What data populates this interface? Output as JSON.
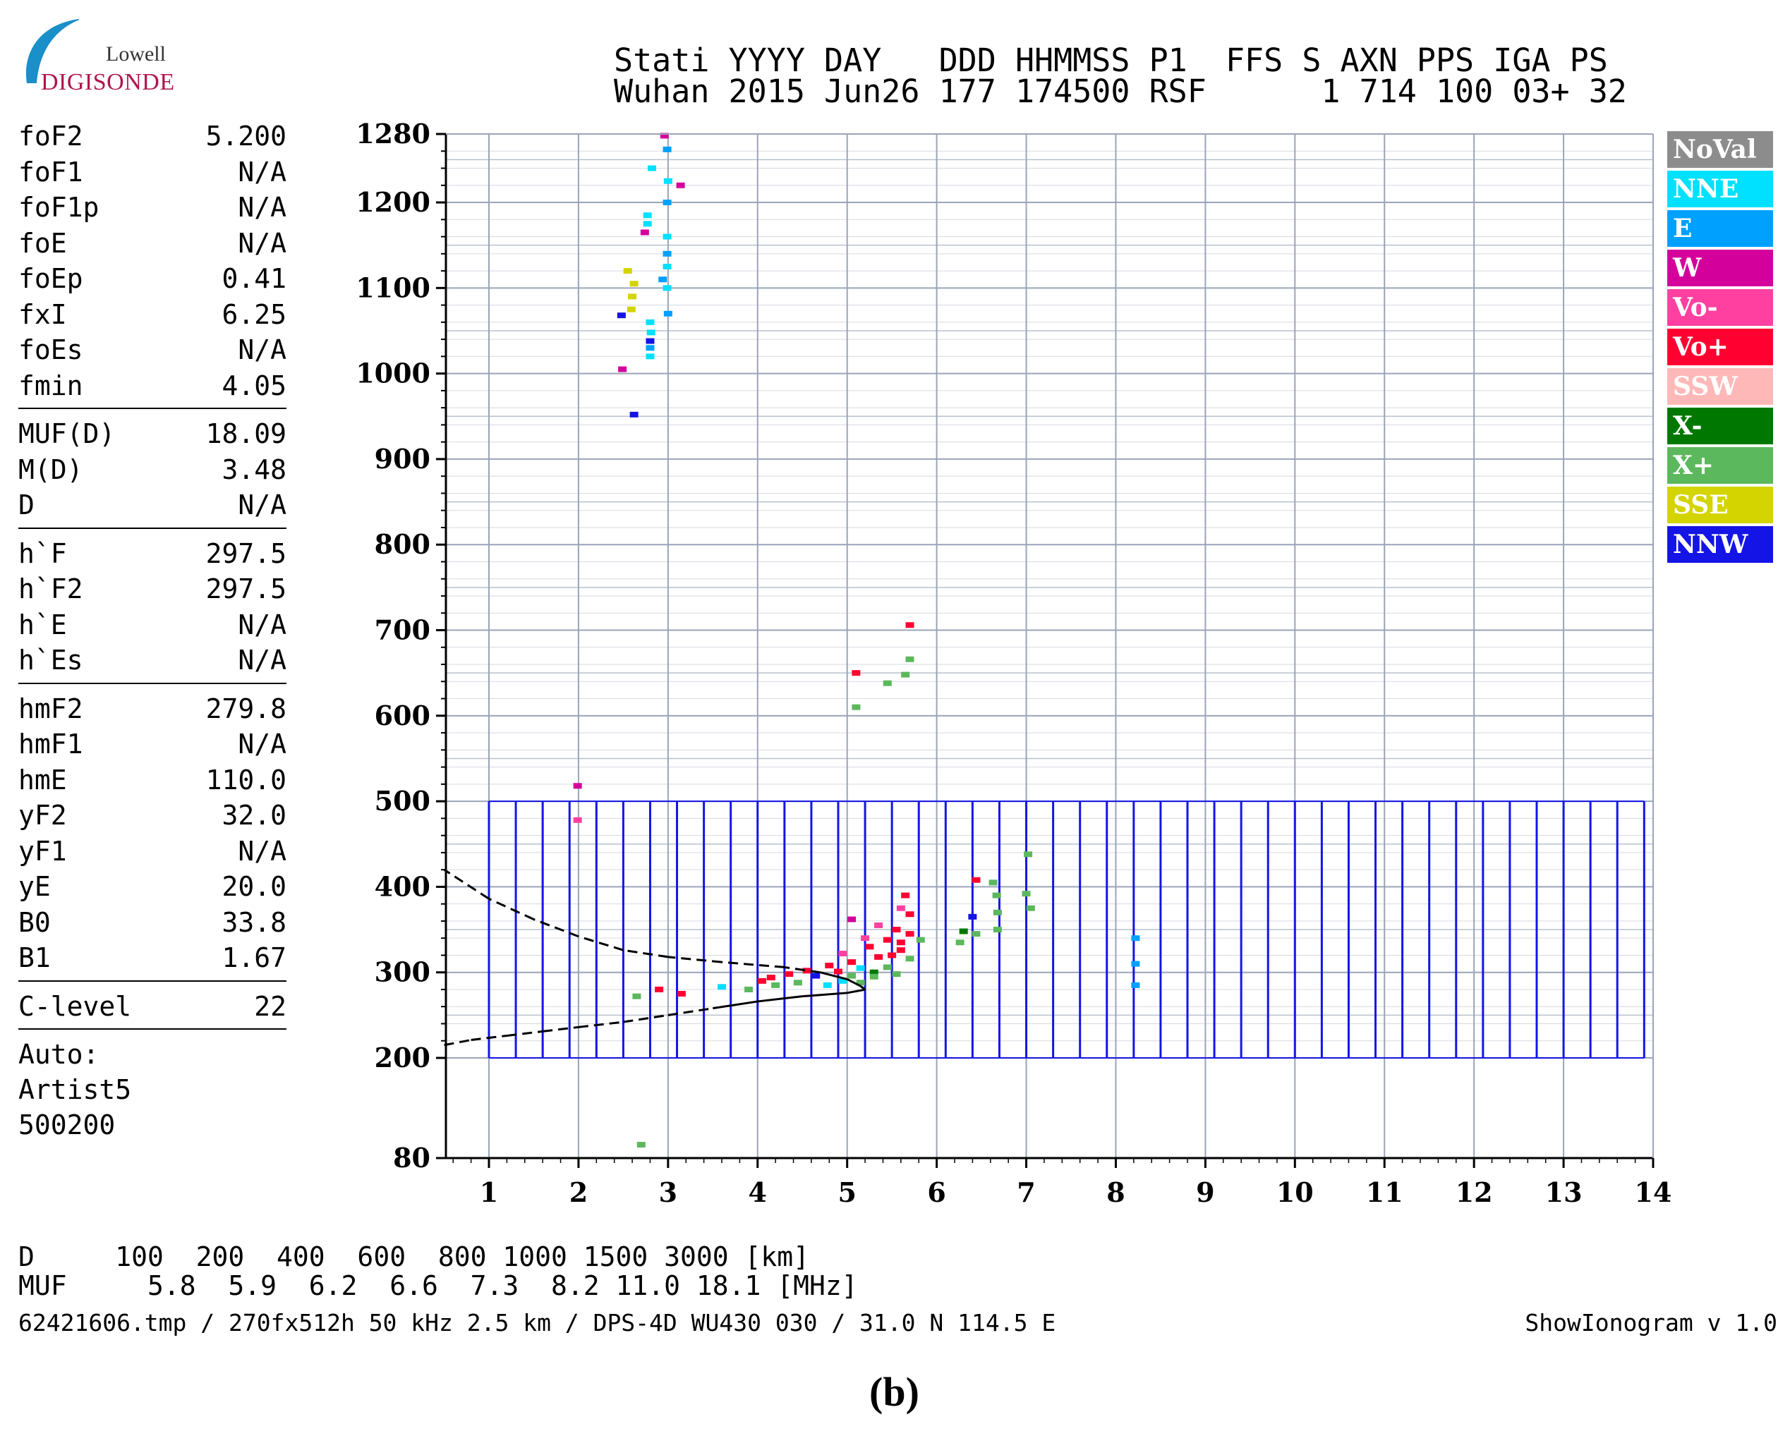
{
  "logo": {
    "brand_top": "Lowell",
    "brand_main": "DIGISONDE"
  },
  "header": {
    "line1": "Stati YYYY DAY   DDD HHMMSS P1  FFS S AXN PPS IGA PS",
    "line2": "Wuhan 2015 Jun26 177 174500 RSF      1 714 100 03+ 32"
  },
  "params": {
    "group1": [
      {
        "name": "foF2",
        "value": "5.200"
      },
      {
        "name": "foF1",
        "value": "N/A"
      },
      {
        "name": "foF1p",
        "value": "N/A"
      },
      {
        "name": "foE",
        "value": "N/A"
      },
      {
        "name": "foEp",
        "value": "0.41"
      },
      {
        "name": "fxI",
        "value": "6.25"
      },
      {
        "name": "foEs",
        "value": "N/A"
      },
      {
        "name": "fmin",
        "value": "4.05"
      }
    ],
    "group2": [
      {
        "name": "MUF(D)",
        "value": "18.09"
      },
      {
        "name": "M(D)",
        "value": "3.48"
      },
      {
        "name": "D",
        "value": "N/A"
      }
    ],
    "group3": [
      {
        "name": "h`F",
        "value": "297.5"
      },
      {
        "name": "h`F2",
        "value": "297.5"
      },
      {
        "name": "h`E",
        "value": "N/A"
      },
      {
        "name": "h`Es",
        "value": "N/A"
      }
    ],
    "group4": [
      {
        "name": "hmF2",
        "value": "279.8"
      },
      {
        "name": "hmF1",
        "value": "N/A"
      },
      {
        "name": "hmE",
        "value": "110.0"
      },
      {
        "name": "yF2",
        "value": "32.0"
      },
      {
        "name": "yF1",
        "value": "N/A"
      },
      {
        "name": "yE",
        "value": "20.0"
      },
      {
        "name": "B0",
        "value": "33.8"
      },
      {
        "name": "B1",
        "value": "1.67"
      }
    ],
    "group5": [
      {
        "name": "C-level",
        "value": "22"
      }
    ],
    "auto_lines": [
      "Auto:",
      "Artist5",
      "500200"
    ]
  },
  "legend": [
    {
      "label": "NoVal",
      "color": "#8c8c8c"
    },
    {
      "label": "NNE",
      "color": "#00e0ff"
    },
    {
      "label": "E",
      "color": "#00a0ff"
    },
    {
      "label": "W",
      "color": "#d4009c"
    },
    {
      "label": "Vo-",
      "color": "#ff40a0"
    },
    {
      "label": "Vo+",
      "color": "#ff0030"
    },
    {
      "label": "SSW",
      "color": "#ffb8b8"
    },
    {
      "label": "X-",
      "color": "#007800"
    },
    {
      "label": "X+",
      "color": "#5cb85c"
    },
    {
      "label": "SSE",
      "color": "#d4d400"
    },
    {
      "label": "NNW",
      "color": "#1414e6"
    }
  ],
  "dtable": {
    "row1": "D     100  200  400  600  800 1000 1500 3000 [km]",
    "row2": "MUF     5.8  5.9  6.2  6.6  7.3  8.2 11.0 18.1 [MHz]"
  },
  "footer": {
    "left": "62421606.tmp / 270fx512h 50 kHz 2.5 km / DPS-4D WU430 030 / 31.0 N 114.5 E",
    "right": "ShowIonogram v 1.0"
  },
  "caption": "(b)",
  "chart_data": {
    "type": "scatter",
    "xlabel": "",
    "ylabel": "",
    "x_ticks": [
      1,
      2,
      3,
      4,
      5,
      6,
      7,
      8,
      9,
      10,
      11,
      12,
      13,
      14
    ],
    "y_ticks": [
      80,
      200,
      300,
      400,
      500,
      600,
      700,
      800,
      900,
      1000,
      1100,
      1200,
      1280
    ],
    "xlim": [
      0.5,
      14
    ],
    "ylim": [
      80,
      1280
    ],
    "grid": true,
    "legend_position": "right",
    "echoes": [
      {
        "series": "W",
        "x": 2.96,
        "y": 1278
      },
      {
        "series": "E",
        "x": 2.99,
        "y": 1262
      },
      {
        "series": "NNE",
        "x": 2.82,
        "y": 1240
      },
      {
        "series": "W",
        "x": 3.14,
        "y": 1220
      },
      {
        "series": "NNE",
        "x": 3.0,
        "y": 1225
      },
      {
        "series": "E",
        "x": 2.99,
        "y": 1200
      },
      {
        "series": "NNE",
        "x": 2.77,
        "y": 1185
      },
      {
        "series": "NNE",
        "x": 2.77,
        "y": 1175
      },
      {
        "series": "W",
        "x": 2.74,
        "y": 1165
      },
      {
        "series": "NNE",
        "x": 2.99,
        "y": 1160
      },
      {
        "series": "E",
        "x": 2.99,
        "y": 1140
      },
      {
        "series": "NNE",
        "x": 2.99,
        "y": 1125
      },
      {
        "series": "E",
        "x": 2.94,
        "y": 1110
      },
      {
        "series": "SSE",
        "x": 2.55,
        "y": 1120
      },
      {
        "series": "SSE",
        "x": 2.62,
        "y": 1105
      },
      {
        "series": "SSE",
        "x": 2.6,
        "y": 1090
      },
      {
        "series": "NNE",
        "x": 2.99,
        "y": 1100
      },
      {
        "series": "SSE",
        "x": 2.59,
        "y": 1075
      },
      {
        "series": "NNW",
        "x": 2.48,
        "y": 1068
      },
      {
        "series": "E",
        "x": 3.0,
        "y": 1070
      },
      {
        "series": "NNE",
        "x": 2.8,
        "y": 1060
      },
      {
        "series": "NNE",
        "x": 2.81,
        "y": 1048
      },
      {
        "series": "NNW",
        "x": 2.8,
        "y": 1038
      },
      {
        "series": "E",
        "x": 2.8,
        "y": 1030
      },
      {
        "series": "NNE",
        "x": 2.8,
        "y": 1020
      },
      {
        "series": "W",
        "x": 2.49,
        "y": 1005
      },
      {
        "series": "NNW",
        "x": 2.62,
        "y": 952
      },
      {
        "series": "Vo+",
        "x": 5.7,
        "y": 706
      },
      {
        "series": "X+",
        "x": 5.7,
        "y": 666
      },
      {
        "series": "Vo+",
        "x": 5.1,
        "y": 650
      },
      {
        "series": "X+",
        "x": 5.65,
        "y": 648
      },
      {
        "series": "X+",
        "x": 5.45,
        "y": 638
      },
      {
        "series": "X+",
        "x": 5.1,
        "y": 610
      },
      {
        "series": "W",
        "x": 1.99,
        "y": 518
      },
      {
        "series": "Vo-",
        "x": 1.99,
        "y": 478
      },
      {
        "series": "X+",
        "x": 7.02,
        "y": 438
      },
      {
        "series": "Vo+",
        "x": 6.44,
        "y": 408
      },
      {
        "series": "X+",
        "x": 6.63,
        "y": 405
      },
      {
        "series": "X+",
        "x": 6.67,
        "y": 390
      },
      {
        "series": "X+",
        "x": 7.0,
        "y": 392
      },
      {
        "series": "X+",
        "x": 6.68,
        "y": 370
      },
      {
        "series": "X+",
        "x": 7.05,
        "y": 375
      },
      {
        "series": "NNW",
        "x": 6.4,
        "y": 365
      },
      {
        "series": "X+",
        "x": 6.68,
        "y": 350
      },
      {
        "series": "X-",
        "x": 6.3,
        "y": 348
      },
      {
        "series": "X+",
        "x": 6.44,
        "y": 345
      },
      {
        "series": "X+",
        "x": 6.26,
        "y": 335
      },
      {
        "series": "E",
        "x": 8.22,
        "y": 340
      },
      {
        "series": "E",
        "x": 8.22,
        "y": 310
      },
      {
        "series": "E",
        "x": 8.22,
        "y": 285
      },
      {
        "series": "Vo+",
        "x": 5.65,
        "y": 390
      },
      {
        "series": "Vo-",
        "x": 5.6,
        "y": 375
      },
      {
        "series": "Vo+",
        "x": 5.7,
        "y": 368
      },
      {
        "series": "W",
        "x": 5.05,
        "y": 362
      },
      {
        "series": "Vo-",
        "x": 5.35,
        "y": 355
      },
      {
        "series": "Vo+",
        "x": 5.55,
        "y": 350
      },
      {
        "series": "Vo+",
        "x": 5.7,
        "y": 345
      },
      {
        "series": "Vo+",
        "x": 5.45,
        "y": 338
      },
      {
        "series": "X+",
        "x": 5.82,
        "y": 338
      },
      {
        "series": "Vo+",
        "x": 5.25,
        "y": 330
      },
      {
        "series": "Vo+",
        "x": 5.6,
        "y": 326
      },
      {
        "series": "Vo-",
        "x": 4.95,
        "y": 322
      },
      {
        "series": "Vo+",
        "x": 5.35,
        "y": 318
      },
      {
        "series": "X+",
        "x": 5.7,
        "y": 316
      },
      {
        "series": "Vo+",
        "x": 5.05,
        "y": 312
      },
      {
        "series": "Vo+",
        "x": 4.8,
        "y": 308
      },
      {
        "series": "NNE",
        "x": 5.15,
        "y": 305
      },
      {
        "series": "X+",
        "x": 5.45,
        "y": 306
      },
      {
        "series": "Vo+",
        "x": 4.55,
        "y": 302
      },
      {
        "series": "Vo+",
        "x": 4.35,
        "y": 298
      },
      {
        "series": "NNW",
        "x": 4.65,
        "y": 296
      },
      {
        "series": "Vo+",
        "x": 4.15,
        "y": 294
      },
      {
        "series": "X+",
        "x": 5.55,
        "y": 298
      },
      {
        "series": "X-",
        "x": 5.3,
        "y": 300
      },
      {
        "series": "NNE",
        "x": 4.95,
        "y": 290
      },
      {
        "series": "X+",
        "x": 4.45,
        "y": 288
      },
      {
        "series": "X+",
        "x": 4.2,
        "y": 285
      },
      {
        "series": "NNE",
        "x": 4.78,
        "y": 285
      },
      {
        "series": "X+",
        "x": 5.15,
        "y": 288
      },
      {
        "series": "Vo+",
        "x": 4.05,
        "y": 290
      },
      {
        "series": "NNE",
        "x": 3.6,
        "y": 283
      },
      {
        "series": "X+",
        "x": 3.9,
        "y": 280
      },
      {
        "series": "Vo+",
        "x": 2.9,
        "y": 280
      },
      {
        "series": "X+",
        "x": 2.65,
        "y": 272
      },
      {
        "series": "Vo+",
        "x": 3.15,
        "y": 275
      },
      {
        "series": "X+",
        "x": 2.7,
        "y": 96
      },
      {
        "series": "Vo+",
        "x": 4.9,
        "y": 301
      },
      {
        "series": "Vo+",
        "x": 5.5,
        "y": 320
      },
      {
        "series": "Vo+",
        "x": 5.6,
        "y": 335
      },
      {
        "series": "Vo-",
        "x": 5.2,
        "y": 340
      },
      {
        "series": "X+",
        "x": 5.3,
        "y": 295
      },
      {
        "series": "X+",
        "x": 5.05,
        "y": 296
      }
    ],
    "profile_curve": [
      [
        0.5,
        215
      ],
      [
        0.8,
        221
      ],
      [
        1.2,
        226
      ],
      [
        1.6,
        231
      ],
      [
        2.0,
        236
      ],
      [
        2.5,
        242
      ],
      [
        3.0,
        250
      ],
      [
        3.5,
        258
      ],
      [
        4.0,
        266
      ],
      [
        4.5,
        272
      ],
      [
        5.0,
        276
      ],
      [
        5.2,
        279.8
      ],
      [
        5.15,
        284
      ],
      [
        5.0,
        292
      ],
      [
        4.7,
        300
      ],
      [
        4.3,
        306
      ],
      [
        3.6,
        312
      ],
      [
        3.0,
        318
      ],
      [
        2.5,
        326
      ],
      [
        2.0,
        342
      ],
      [
        1.5,
        362
      ],
      [
        1.0,
        386
      ],
      [
        0.5,
        420
      ]
    ],
    "profile_solid_x_range": [
      2.4,
      5.2
    ],
    "scaler_lines": {
      "x": [
        1.0,
        1.3,
        1.6,
        1.9,
        2.2,
        2.5,
        2.8,
        3.1,
        3.4,
        3.7,
        4.0,
        4.3,
        4.6,
        4.9,
        5.2,
        5.5,
        5.8,
        6.1,
        6.4,
        6.7,
        7.0,
        7.3,
        7.6,
        7.9,
        8.2,
        8.5,
        8.8,
        9.1,
        9.4,
        9.7,
        10.0,
        10.3,
        10.6,
        10.9,
        11.2,
        11.5,
        11.8,
        12.1,
        12.4,
        12.7,
        13.0,
        13.3,
        13.6,
        13.9
      ],
      "y_range": [
        200,
        500
      ]
    }
  }
}
